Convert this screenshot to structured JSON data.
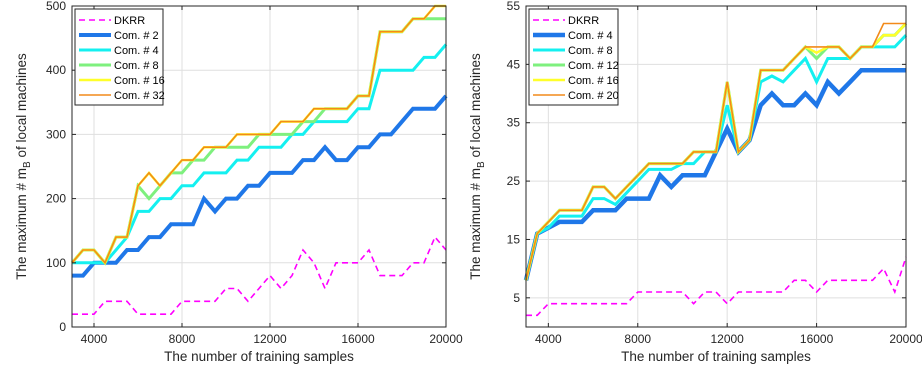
{
  "chart_data": [
    {
      "type": "line",
      "xlabel": "The number of training samples",
      "ylabel_main": "The maximum # m",
      "ylabel_sub": "B",
      "ylabel_tail": " of local machines",
      "xlim": [
        3000,
        20000
      ],
      "ylim": [
        0,
        500
      ],
      "xticks": [
        4000,
        8000,
        12000,
        16000,
        20000
      ],
      "yticks": [
        0,
        100,
        200,
        300,
        400,
        500
      ],
      "grid": true,
      "legend_location": "top-left",
      "series": [
        {
          "name": "DKRR",
          "color": "#ff00ff",
          "dash": true,
          "width": 1.6,
          "x": [
            3000,
            3500,
            4000,
            4500,
            5000,
            5500,
            6000,
            6500,
            7000,
            7500,
            8000,
            8500,
            9000,
            9500,
            10000,
            10500,
            11000,
            11500,
            12000,
            12500,
            13000,
            13500,
            14000,
            14500,
            15000,
            15500,
            16000,
            16500,
            17000,
            17500,
            18000,
            18500,
            19000,
            19500,
            20000
          ],
          "y": [
            20,
            20,
            20,
            40,
            40,
            40,
            20,
            20,
            20,
            20,
            40,
            40,
            40,
            40,
            60,
            60,
            40,
            60,
            80,
            60,
            80,
            120,
            100,
            60,
            100,
            100,
            100,
            120,
            80,
            80,
            80,
            100,
            100,
            140,
            120
          ]
        },
        {
          "name": "Com. # 2",
          "color": "#1f77e8",
          "width": 4,
          "x": [
            3000,
            3500,
            4000,
            4500,
            5000,
            5500,
            6000,
            6500,
            7000,
            7500,
            8000,
            8500,
            9000,
            9500,
            10000,
            10500,
            11000,
            11500,
            12000,
            12500,
            13000,
            13500,
            14000,
            14500,
            15000,
            15500,
            16000,
            16500,
            17000,
            17500,
            18000,
            18500,
            19000,
            19500,
            20000
          ],
          "y": [
            80,
            80,
            100,
            100,
            100,
            120,
            120,
            140,
            140,
            160,
            160,
            160,
            200,
            180,
            200,
            200,
            220,
            220,
            240,
            240,
            240,
            260,
            260,
            280,
            260,
            260,
            280,
            280,
            300,
            300,
            320,
            340,
            340,
            340,
            360
          ]
        },
        {
          "name": "Com. # 4",
          "color": "#14f0f0",
          "width": 3,
          "x": [
            3000,
            3500,
            4000,
            4500,
            5000,
            5500,
            6000,
            6500,
            7000,
            7500,
            8000,
            8500,
            9000,
            9500,
            10000,
            10500,
            11000,
            11500,
            12000,
            12500,
            13000,
            13500,
            14000,
            14500,
            15000,
            15500,
            16000,
            16500,
            17000,
            17500,
            18000,
            18500,
            19000,
            19500,
            20000
          ],
          "y": [
            100,
            100,
            100,
            100,
            120,
            140,
            180,
            180,
            200,
            200,
            220,
            220,
            240,
            240,
            240,
            260,
            260,
            280,
            280,
            280,
            300,
            300,
            320,
            320,
            320,
            320,
            340,
            340,
            400,
            400,
            400,
            400,
            420,
            420,
            440
          ]
        },
        {
          "name": "Com. # 8",
          "color": "#7ef07e",
          "width": 3,
          "x": [
            3000,
            3500,
            4000,
            4500,
            5000,
            5500,
            6000,
            6500,
            7000,
            7500,
            8000,
            8500,
            9000,
            9500,
            10000,
            10500,
            11000,
            11500,
            12000,
            12500,
            13000,
            13500,
            14000,
            14500,
            15000,
            15500,
            16000,
            16500,
            17000,
            17500,
            18000,
            18500,
            19000,
            19500,
            20000
          ],
          "y": [
            100,
            120,
            120,
            100,
            140,
            140,
            220,
            200,
            220,
            240,
            240,
            260,
            260,
            280,
            280,
            280,
            280,
            300,
            300,
            300,
            300,
            320,
            320,
            340,
            340,
            340,
            360,
            360,
            460,
            460,
            460,
            480,
            480,
            480,
            480
          ]
        },
        {
          "name": "Com. # 16",
          "color": "#ffff2a",
          "width": 2.5,
          "x": [
            3000,
            3500,
            4000,
            4500,
            5000,
            5500,
            6000,
            6500,
            7000,
            7500,
            8000,
            8500,
            9000,
            9500,
            10000,
            10500,
            11000,
            11500,
            12000,
            12500,
            13000,
            13500,
            14000,
            14500,
            15000,
            15500,
            16000,
            16500,
            17000,
            17500,
            18000,
            18500,
            19000,
            19500,
            20000
          ],
          "y": [
            100,
            120,
            120,
            100,
            140,
            140,
            220,
            240,
            220,
            240,
            260,
            260,
            280,
            280,
            280,
            300,
            300,
            300,
            300,
            320,
            320,
            320,
            340,
            340,
            340,
            340,
            360,
            360,
            460,
            460,
            460,
            480,
            480,
            500,
            500
          ]
        },
        {
          "name": "Com. # 32",
          "color": "#f28a1a",
          "width": 1.6,
          "x": [
            3000,
            3500,
            4000,
            4500,
            5000,
            5500,
            6000,
            6500,
            7000,
            7500,
            8000,
            8500,
            9000,
            9500,
            10000,
            10500,
            11000,
            11500,
            12000,
            12500,
            13000,
            13500,
            14000,
            14500,
            15000,
            15500,
            16000,
            16500,
            17000,
            17500,
            18000,
            18500,
            19000,
            19500,
            20000
          ],
          "y": [
            100,
            120,
            120,
            100,
            140,
            140,
            220,
            240,
            220,
            240,
            260,
            260,
            280,
            280,
            280,
            300,
            300,
            300,
            300,
            320,
            320,
            320,
            340,
            340,
            340,
            340,
            360,
            360,
            460,
            460,
            460,
            480,
            480,
            500,
            500
          ]
        }
      ]
    },
    {
      "type": "line",
      "xlabel": "The number of training samples",
      "ylabel_main": "The maximum # m",
      "ylabel_sub": "B",
      "ylabel_tail": " of local machines",
      "xlim": [
        3000,
        20000
      ],
      "ylim": [
        0,
        55
      ],
      "xticks": [
        4000,
        8000,
        12000,
        16000,
        20000
      ],
      "yticks": [
        5,
        15,
        25,
        35,
        45,
        55
      ],
      "grid": true,
      "legend_location": "top-left",
      "series": [
        {
          "name": "DKRR",
          "color": "#ff00ff",
          "dash": true,
          "width": 1.6,
          "x": [
            3000,
            3500,
            4000,
            4500,
            5000,
            5500,
            6000,
            6500,
            7000,
            7500,
            8000,
            8500,
            9000,
            9500,
            10000,
            10500,
            11000,
            11500,
            12000,
            12500,
            13000,
            13500,
            14000,
            14500,
            15000,
            15500,
            16000,
            16500,
            17000,
            17500,
            18000,
            18500,
            19000,
            19500,
            20000
          ],
          "y": [
            2,
            2,
            4,
            4,
            4,
            4,
            4,
            4,
            4,
            4,
            6,
            6,
            6,
            6,
            6,
            4,
            6,
            6,
            4,
            6,
            6,
            6,
            6,
            6,
            8,
            8,
            6,
            8,
            8,
            8,
            8,
            8,
            10,
            6,
            12
          ]
        },
        {
          "name": "Com. # 4",
          "color": "#1f77e8",
          "width": 4.5,
          "x": [
            3000,
            3500,
            4000,
            4500,
            5000,
            5500,
            6000,
            6500,
            7000,
            7500,
            8000,
            8500,
            9000,
            9500,
            10000,
            10500,
            11000,
            11500,
            12000,
            12500,
            13000,
            13500,
            14000,
            14500,
            15000,
            15500,
            16000,
            16500,
            17000,
            17500,
            18000,
            18500,
            19000,
            19500,
            20000
          ],
          "y": [
            8,
            16,
            17,
            18,
            18,
            18,
            20,
            20,
            20,
            22,
            22,
            22,
            26,
            24,
            26,
            26,
            26,
            30,
            34,
            30,
            32,
            38,
            40,
            38,
            38,
            40,
            38,
            42,
            40,
            42,
            44,
            44,
            44,
            44,
            44
          ]
        },
        {
          "name": "Com. # 8",
          "color": "#14f0f0",
          "width": 3,
          "x": [
            3000,
            3500,
            4000,
            4500,
            5000,
            5500,
            6000,
            6500,
            7000,
            7500,
            8000,
            8500,
            9000,
            9500,
            10000,
            10500,
            11000,
            11500,
            12000,
            12500,
            13000,
            13500,
            14000,
            14500,
            15000,
            15500,
            16000,
            16500,
            17000,
            17500,
            18000,
            18500,
            19000,
            19500,
            20000
          ],
          "y": [
            8,
            16,
            17,
            19,
            19,
            19,
            22,
            22,
            21,
            23,
            25,
            27,
            27,
            27,
            28,
            28,
            30,
            30,
            38,
            30,
            32,
            42,
            43,
            42,
            44,
            46,
            42,
            46,
            46,
            46,
            48,
            48,
            48,
            48,
            50
          ]
        },
        {
          "name": "Com. # 12",
          "color": "#7ef07e",
          "width": 3,
          "x": [
            3000,
            3500,
            4000,
            4500,
            5000,
            5500,
            6000,
            6500,
            7000,
            7500,
            8000,
            8500,
            9000,
            9500,
            10000,
            10500,
            11000,
            11500,
            12000,
            12500,
            13000,
            13500,
            14000,
            14500,
            15000,
            15500,
            16000,
            16500,
            17000,
            17500,
            18000,
            18500,
            19000,
            19500,
            20000
          ],
          "y": [
            8,
            16,
            18,
            20,
            20,
            20,
            24,
            24,
            22,
            24,
            26,
            28,
            28,
            28,
            28,
            30,
            30,
            30,
            42,
            30,
            32,
            44,
            44,
            44,
            46,
            48,
            46,
            48,
            48,
            46,
            48,
            48,
            50,
            50,
            52
          ]
        },
        {
          "name": "Com. # 16",
          "color": "#ffff2a",
          "width": 2.5,
          "x": [
            3000,
            3500,
            4000,
            4500,
            5000,
            5500,
            6000,
            6500,
            7000,
            7500,
            8000,
            8500,
            9000,
            9500,
            10000,
            10500,
            11000,
            11500,
            12000,
            12500,
            13000,
            13500,
            14000,
            14500,
            15000,
            15500,
            16000,
            16500,
            17000,
            17500,
            18000,
            18500,
            19000,
            19500,
            20000
          ],
          "y": [
            8,
            16,
            18,
            20,
            20,
            20,
            24,
            24,
            22,
            24,
            26,
            28,
            28,
            28,
            28,
            30,
            30,
            30,
            42,
            30,
            32,
            44,
            44,
            44,
            46,
            48,
            47,
            48,
            48,
            46,
            48,
            48,
            50,
            50,
            52
          ]
        },
        {
          "name": "Com. # 20",
          "color": "#f28a1a",
          "width": 1.6,
          "x": [
            3000,
            3500,
            4000,
            4500,
            5000,
            5500,
            6000,
            6500,
            7000,
            7500,
            8000,
            8500,
            9000,
            9500,
            10000,
            10500,
            11000,
            11500,
            12000,
            12500,
            13000,
            13500,
            14000,
            14500,
            15000,
            15500,
            16000,
            16500,
            17000,
            17500,
            18000,
            18500,
            19000,
            19500,
            20000
          ],
          "y": [
            8,
            16,
            18,
            20,
            20,
            20,
            24,
            24,
            22,
            24,
            26,
            28,
            28,
            28,
            28,
            30,
            30,
            30,
            42,
            30,
            32,
            44,
            44,
            44,
            46,
            48,
            48,
            48,
            48,
            46,
            48,
            48,
            52,
            52,
            52
          ]
        }
      ]
    }
  ]
}
